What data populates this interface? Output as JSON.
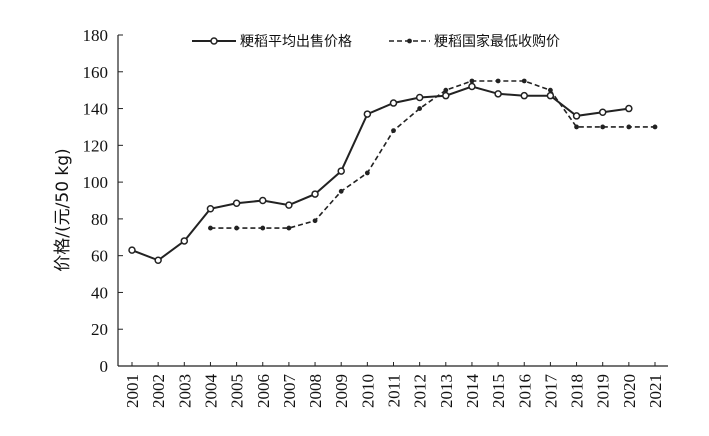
{
  "chart_data": {
    "type": "line",
    "ylabel": "价格/(元/50 kg)",
    "xlabel": "",
    "ylim": [
      0,
      180
    ],
    "yticks": [
      0,
      20,
      40,
      60,
      80,
      100,
      120,
      140,
      160,
      180
    ],
    "categories": [
      "2001",
      "2002",
      "2003",
      "2004",
      "2005",
      "2006",
      "2007",
      "2008",
      "2009",
      "2010",
      "2011",
      "2012",
      "2013",
      "2014",
      "2015",
      "2016",
      "2017",
      "2018",
      "2019",
      "2020",
      "2021"
    ],
    "legend_position": "top",
    "series": [
      {
        "name": "粳稻平均出售价格",
        "line_style": "solid",
        "marker": "hollow-circle",
        "color": "#222222",
        "values": [
          63,
          57.5,
          68,
          85.5,
          88.5,
          90,
          87.5,
          93.5,
          106,
          137,
          143,
          146,
          147,
          152,
          148,
          147,
          147,
          136,
          138,
          140,
          null
        ]
      },
      {
        "name": "粳稻国家最低收购价",
        "line_style": "dashed",
        "marker": "filled-dot",
        "color": "#222222",
        "values": [
          null,
          null,
          null,
          75,
          75,
          75,
          75,
          79,
          95,
          105,
          128,
          140,
          150,
          155,
          155,
          155,
          150,
          130,
          130,
          130,
          130
        ]
      }
    ]
  }
}
